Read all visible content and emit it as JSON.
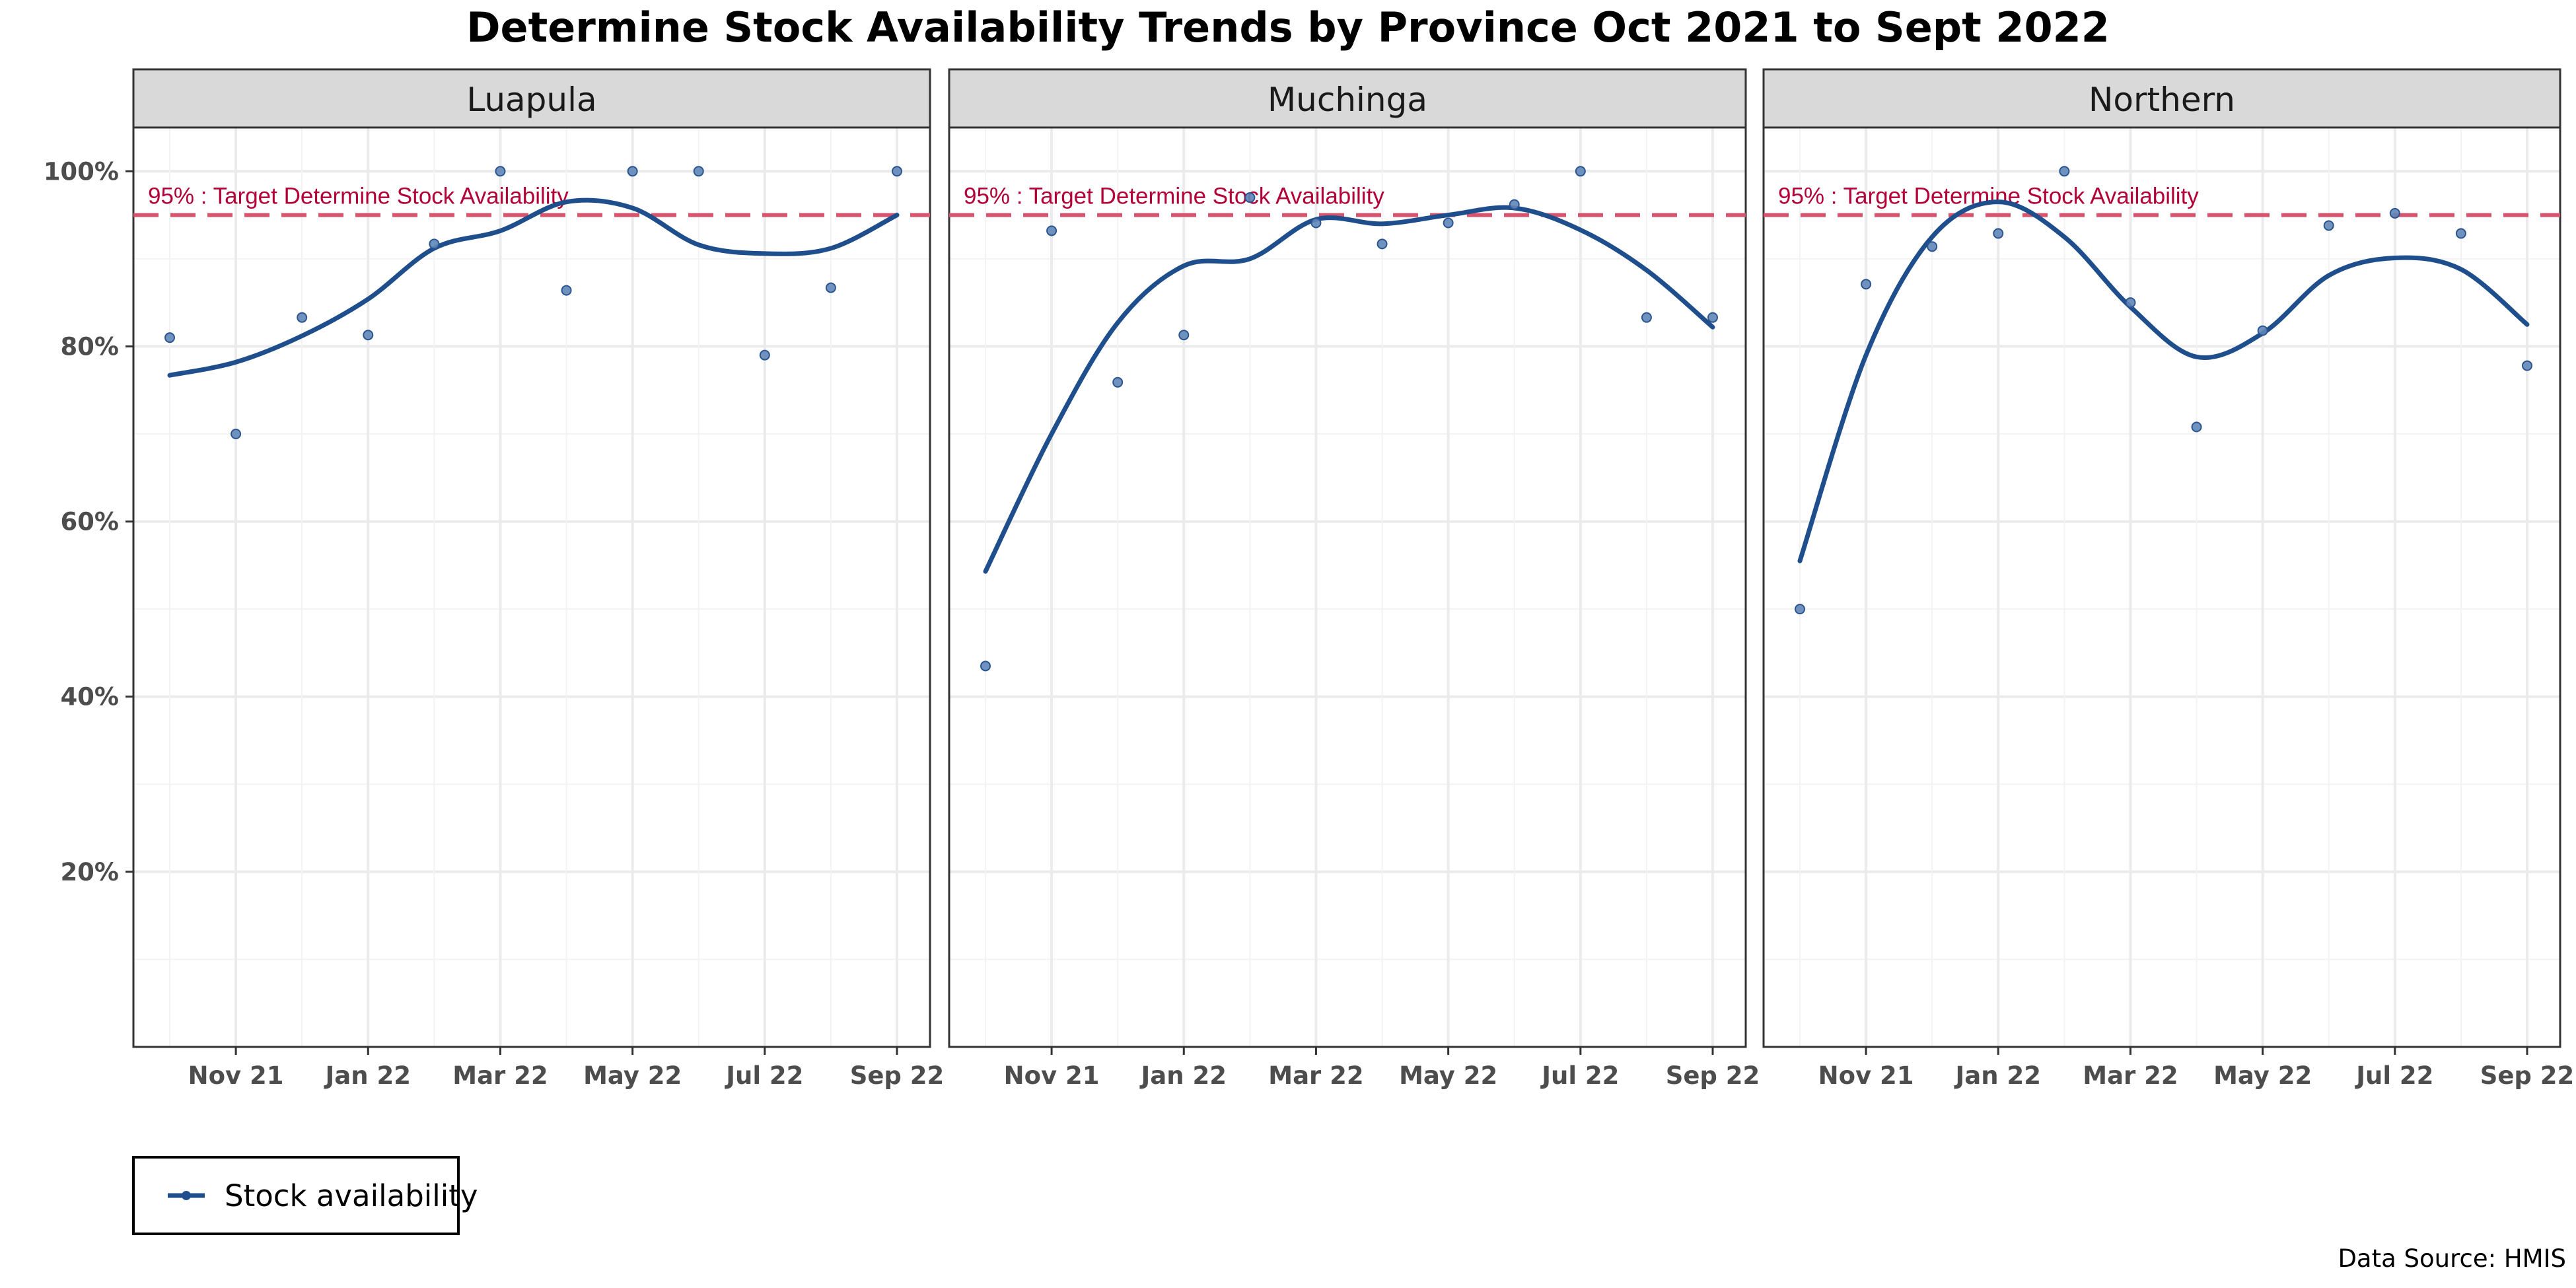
{
  "title": "Determine Stock Availability Trends by Province Oct 2021 to Sept 2022",
  "caption": "Data Source: HMIS",
  "legend": {
    "label": "Stock availability"
  },
  "colors": {
    "series": "#1f4e8c",
    "target": "#d6546e",
    "target_text": "#b30036",
    "strip_fill": "#d9d9d9",
    "grid": "#ebebeb"
  },
  "chart_data": {
    "type": "scatter",
    "facets": [
      "Luapula",
      "Muchinga",
      "Northern"
    ],
    "x": [
      "2021-10",
      "2021-11",
      "2021-12",
      "2022-01",
      "2022-02",
      "2022-03",
      "2022-04",
      "2022-05",
      "2022-06",
      "2022-07",
      "2022-08",
      "2022-09"
    ],
    "x_ticks": [
      "Nov 21",
      "Jan 22",
      "Mar 22",
      "May 22",
      "Jul 22",
      "Sep 22"
    ],
    "y_ticks": [
      "20%",
      "40%",
      "60%",
      "80%",
      "100%"
    ],
    "ylim": [
      0,
      105
    ],
    "target": {
      "value": 95,
      "label": "95% : Target Determine Stock Availability"
    },
    "series": [
      {
        "name": "Stock availability",
        "panels": [
          {
            "facet": "Luapula",
            "points": [
              81,
              70,
              83.3,
              81.3,
              91.7,
              100,
              86.4,
              100,
              100,
              79,
              86.7,
              100
            ],
            "smooth": [
              76.7,
              78.2,
              81.2,
              85.4,
              91.2,
              93.2,
              96.5,
              95.8,
              91.6,
              90.6,
              91.2,
              95
            ]
          },
          {
            "facet": "Muchinga",
            "points": [
              43.5,
              93.2,
              75.9,
              81.3,
              97,
              94.1,
              91.7,
              94.1,
              96.2,
              100,
              83.3,
              83.3
            ],
            "smooth": [
              54.3,
              70,
              82.7,
              89.2,
              90,
              94.5,
              94,
              95,
              95.8,
              93.3,
              88.7,
              82.2
            ]
          },
          {
            "facet": "Northern",
            "points": [
              50,
              87.1,
              91.4,
              92.9,
              100,
              85,
              70.8,
              81.8,
              93.8,
              95.2,
              92.9,
              77.8
            ],
            "smooth": [
              55.5,
              79,
              92.5,
              96.5,
              92.5,
              84.5,
              78.8,
              81.5,
              88.1,
              90.1,
              88.8,
              82.5
            ]
          }
        ]
      }
    ],
    "grid": true,
    "legend_position": "bottom-left"
  }
}
